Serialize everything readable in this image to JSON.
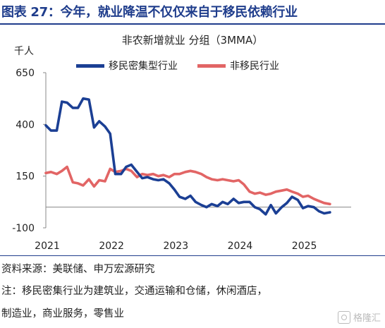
{
  "figure_title": "图表 27：今年，就业降温不仅仅来自于移民依赖行业",
  "source_note": "资料来源：美联储、申万宏源研究",
  "footnote_line1": "注：移民密集行业为建筑业，交通运输和仓储，休闲酒店，",
  "footnote_line2": "制造业，商业服务，零售业",
  "watermark_text": "格隆汇",
  "chart_data": {
    "type": "line",
    "title": "非农新增就业 分组（3MMA）",
    "ylabel": "千人",
    "ylim": [
      -100,
      650
    ],
    "yticks": [
      "650",
      "400",
      "150",
      "-100"
    ],
    "ytick_values": [
      650,
      400,
      150,
      -100
    ],
    "xlim": [
      2021.0,
      2025.75
    ],
    "xticks": [
      "2021",
      "2022",
      "2023",
      "2024",
      "2025"
    ],
    "xtick_values": [
      2021,
      2022,
      2023,
      2024,
      2025
    ],
    "zero_line": true,
    "grid": false,
    "legend_position": "top",
    "series": [
      {
        "name": "移民密集型行业",
        "color": "#1b3f94",
        "points": [
          [
            2021.0,
            395
          ],
          [
            2021.08,
            370
          ],
          [
            2021.17,
            370
          ],
          [
            2021.25,
            510
          ],
          [
            2021.33,
            505
          ],
          [
            2021.42,
            480
          ],
          [
            2021.5,
            480
          ],
          [
            2021.58,
            525
          ],
          [
            2021.67,
            520
          ],
          [
            2021.75,
            385
          ],
          [
            2021.83,
            415
          ],
          [
            2021.92,
            390
          ],
          [
            2022.0,
            355
          ],
          [
            2022.08,
            160
          ],
          [
            2022.17,
            160
          ],
          [
            2022.25,
            195
          ],
          [
            2022.33,
            205
          ],
          [
            2022.42,
            170
          ],
          [
            2022.5,
            140
          ],
          [
            2022.58,
            145
          ],
          [
            2022.67,
            135
          ],
          [
            2022.75,
            130
          ],
          [
            2022.83,
            135
          ],
          [
            2022.92,
            115
          ],
          [
            2023.0,
            85
          ],
          [
            2023.08,
            50
          ],
          [
            2023.17,
            40
          ],
          [
            2023.25,
            55
          ],
          [
            2023.33,
            25
          ],
          [
            2023.42,
            10
          ],
          [
            2023.5,
            0
          ],
          [
            2023.58,
            15
          ],
          [
            2023.67,
            5
          ],
          [
            2023.75,
            25
          ],
          [
            2023.83,
            15
          ],
          [
            2023.92,
            40
          ],
          [
            2024.0,
            20
          ],
          [
            2024.08,
            25
          ],
          [
            2024.17,
            25
          ],
          [
            2024.25,
            0
          ],
          [
            2024.33,
            -10
          ],
          [
            2024.42,
            -35
          ],
          [
            2024.5,
            10
          ],
          [
            2024.58,
            -30
          ],
          [
            2024.67,
            0
          ],
          [
            2024.75,
            20
          ],
          [
            2024.83,
            50
          ],
          [
            2024.92,
            35
          ],
          [
            2025.0,
            -5
          ],
          [
            2025.08,
            5
          ],
          [
            2025.17,
            0
          ],
          [
            2025.25,
            -20
          ],
          [
            2025.33,
            -30
          ],
          [
            2025.42,
            -25
          ]
        ]
      },
      {
        "name": "非移民行业",
        "color": "#e26565",
        "points": [
          [
            2021.0,
            165
          ],
          [
            2021.08,
            170
          ],
          [
            2021.17,
            160
          ],
          [
            2021.25,
            175
          ],
          [
            2021.33,
            195
          ],
          [
            2021.42,
            120
          ],
          [
            2021.5,
            115
          ],
          [
            2021.58,
            105
          ],
          [
            2021.67,
            135
          ],
          [
            2021.75,
            100
          ],
          [
            2021.83,
            130
          ],
          [
            2021.92,
            125
          ],
          [
            2022.0,
            185
          ],
          [
            2022.08,
            170
          ],
          [
            2022.17,
            175
          ],
          [
            2022.25,
            185
          ],
          [
            2022.33,
            175
          ],
          [
            2022.42,
            145
          ],
          [
            2022.5,
            160
          ],
          [
            2022.58,
            155
          ],
          [
            2022.67,
            160
          ],
          [
            2022.75,
            150
          ],
          [
            2022.83,
            155
          ],
          [
            2022.92,
            145
          ],
          [
            2023.0,
            160
          ],
          [
            2023.08,
            160
          ],
          [
            2023.17,
            170
          ],
          [
            2023.25,
            175
          ],
          [
            2023.33,
            170
          ],
          [
            2023.42,
            160
          ],
          [
            2023.5,
            145
          ],
          [
            2023.58,
            135
          ],
          [
            2023.67,
            130
          ],
          [
            2023.75,
            135
          ],
          [
            2023.83,
            130
          ],
          [
            2023.92,
            125
          ],
          [
            2024.0,
            130
          ],
          [
            2024.08,
            110
          ],
          [
            2024.17,
            75
          ],
          [
            2024.25,
            65
          ],
          [
            2024.33,
            70
          ],
          [
            2024.42,
            60
          ],
          [
            2024.5,
            65
          ],
          [
            2024.58,
            75
          ],
          [
            2024.67,
            80
          ],
          [
            2024.75,
            85
          ],
          [
            2024.83,
            75
          ],
          [
            2024.92,
            65
          ],
          [
            2025.0,
            50
          ],
          [
            2025.08,
            55
          ],
          [
            2025.17,
            40
          ],
          [
            2025.25,
            30
          ],
          [
            2025.33,
            20
          ],
          [
            2025.42,
            15
          ]
        ]
      }
    ]
  }
}
